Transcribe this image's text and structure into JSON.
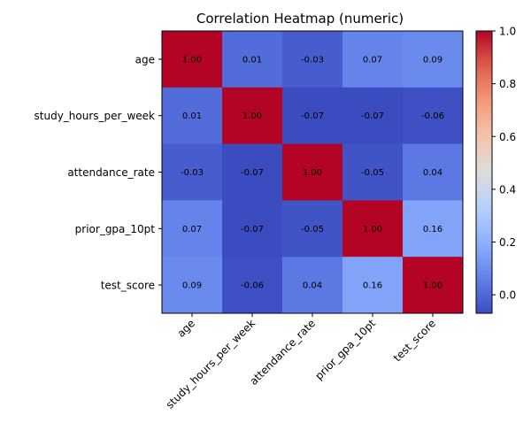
{
  "chart_data": {
    "type": "heatmap",
    "title": "Correlation Heatmap (numeric)",
    "x_labels": [
      "age",
      "study_hours_per_week",
      "attendance_rate",
      "prior_gpa_10pt",
      "test_score"
    ],
    "y_labels": [
      "age",
      "study_hours_per_week",
      "attendance_rate",
      "prior_gpa_10pt",
      "test_score"
    ],
    "values": [
      [
        1.0,
        0.01,
        -0.03,
        0.07,
        0.09
      ],
      [
        0.01,
        1.0,
        -0.07,
        -0.07,
        -0.06
      ],
      [
        -0.03,
        -0.07,
        1.0,
        -0.05,
        0.04
      ],
      [
        0.07,
        -0.07,
        -0.05,
        1.0,
        0.16
      ],
      [
        0.09,
        -0.06,
        0.04,
        0.16,
        1.0
      ]
    ],
    "colormap": "coolwarm",
    "vmin": -0.07,
    "vmax": 1.0,
    "colorbar_ticks": [
      "0.0",
      "0.2",
      "0.4",
      "0.6",
      "0.8",
      "1.0"
    ],
    "colorbar_tick_values": [
      0.0,
      0.2,
      0.4,
      0.6,
      0.8,
      1.0
    ]
  }
}
